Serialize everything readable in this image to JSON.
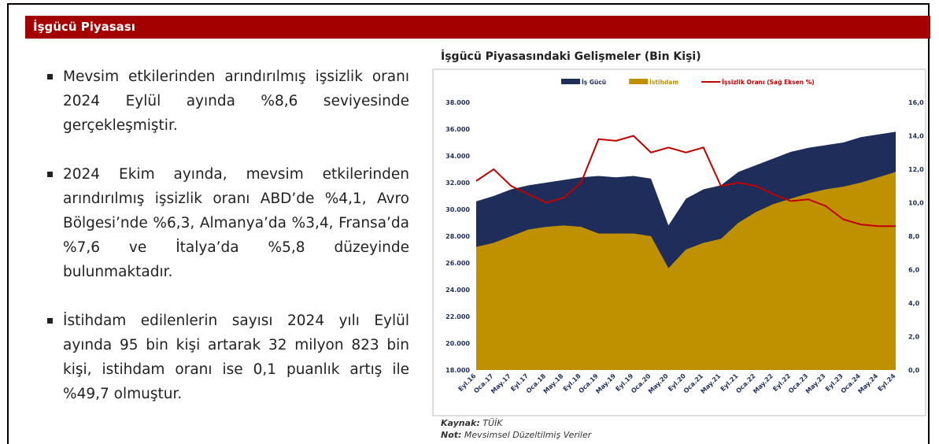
{
  "header": {
    "title": "İşgücü Piyasası"
  },
  "bullets": [
    "Mevsim etkilerinden arındırılmış işsizlik oranı 2024 Eylül ayında %8,6 seviyesinde gerçekleşmiştir.",
    "2024 Ekim ayında, mevsim etkilerinden arındırılmış işsizlik oranı ABD’de %4,1, Avro Bölgesi’nde %6,3, Almanya’da %3,4, Fransa’da %7,6 ve İtalya’da %5,8 düzeyinde bulunmaktadır.",
    "İstihdam edilenlerin sayısı 2024 yılı Eylül ayında 95 bin kişi artarak 32 milyon 823 bin kişi, istihdam oranı ise 0,1 puanlık artış ile %49,7 olmuştur."
  ],
  "notes": {
    "source_label": "Kaynak:",
    "source": "TÜİK",
    "note_label": "Not:",
    "note": "Mevsimsel Düzeltilmiş Veriler"
  },
  "chart_data": {
    "type": "area",
    "title": "İşgücü Piyasasındaki Gelişmeler (Bin Kişi)",
    "categories": [
      "Eyl.16",
      "Oca.17",
      "May.17",
      "Eyl.17",
      "Oca.18",
      "May.18",
      "Eyl.18",
      "Oca.19",
      "May.19",
      "Eyl.19",
      "Oca.20",
      "May.20",
      "Eyl.20",
      "Oca.21",
      "May.21",
      "Eyl.21",
      "Oca.22",
      "May.22",
      "Eyl.22",
      "Oca.23",
      "May.23",
      "Eyl.23",
      "Oca.24",
      "May.24",
      "Eyl.24"
    ],
    "series": [
      {
        "name": "İş Gücü",
        "color": "#1f2d5a",
        "type": "area",
        "values": [
          30600,
          31000,
          31500,
          31800,
          32000,
          32200,
          32400,
          32500,
          32400,
          32500,
          32300,
          28800,
          30800,
          31500,
          31800,
          32800,
          33300,
          33800,
          34300,
          34600,
          34800,
          35000,
          35400,
          35600,
          35800
        ]
      },
      {
        "name": "İstihdam",
        "color": "#bf9000",
        "type": "area",
        "values": [
          27200,
          27500,
          28000,
          28500,
          28700,
          28800,
          28700,
          28200,
          28200,
          28200,
          28000,
          25600,
          27000,
          27500,
          27800,
          29000,
          29800,
          30400,
          30800,
          31200,
          31500,
          31700,
          32000,
          32400,
          32800
        ]
      },
      {
        "name": "İşsizlik Oranı (Sağ Eksen %)",
        "color": "#c00000",
        "type": "line",
        "axis": "y2",
        "values": [
          11.3,
          12.0,
          11.0,
          10.5,
          10.0,
          10.3,
          11.2,
          13.8,
          13.7,
          14.0,
          13.0,
          13.3,
          13.0,
          13.3,
          11.0,
          11.2,
          11.0,
          10.5,
          10.1,
          10.2,
          9.8,
          9.0,
          8.7,
          8.6,
          8.6
        ]
      }
    ],
    "ylim": [
      18000,
      38000
    ],
    "yticks": [
      {
        "value": 18000,
        "label": "18.000"
      },
      {
        "value": 20000,
        "label": "20.000"
      },
      {
        "value": 22000,
        "label": "22.000"
      },
      {
        "value": 24000,
        "label": "24.000"
      },
      {
        "value": 26000,
        "label": "26.000"
      },
      {
        "value": 28000,
        "label": "28.000"
      },
      {
        "value": 30000,
        "label": "30.000"
      },
      {
        "value": 32000,
        "label": "32.000"
      },
      {
        "value": 34000,
        "label": "34.000"
      },
      {
        "value": 36000,
        "label": "36.000"
      },
      {
        "value": 38000,
        "label": "38.000"
      }
    ],
    "y2lim": [
      0,
      16
    ],
    "y2ticks": [
      {
        "value": 0,
        "label": "0,0"
      },
      {
        "value": 2,
        "label": "2,0"
      },
      {
        "value": 4,
        "label": "4,0"
      },
      {
        "value": 6,
        "label": "6,0"
      },
      {
        "value": 8,
        "label": "8,0"
      },
      {
        "value": 10,
        "label": "10,0"
      },
      {
        "value": 12,
        "label": "12,0"
      },
      {
        "value": 14,
        "label": "14,0"
      },
      {
        "value": 16,
        "label": "16,0"
      }
    ],
    "legend": "top"
  }
}
